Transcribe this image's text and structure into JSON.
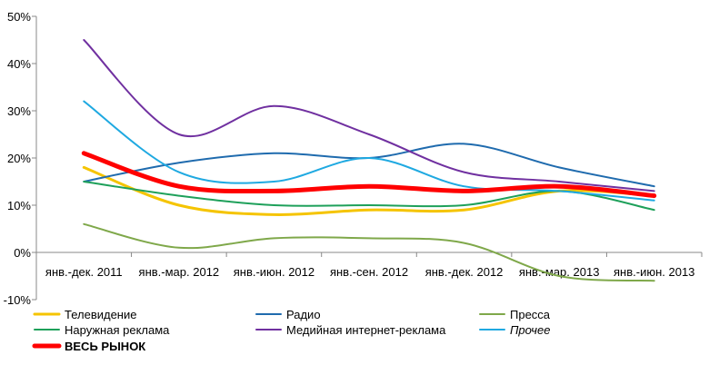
{
  "chart_data": {
    "type": "line",
    "title": "",
    "xlabel": "",
    "ylabel": "",
    "categories": [
      "янв.-дек. 2011",
      "янв.-мар. 2012",
      "янв.-июн. 2012",
      "янв.-сен. 2012",
      "янв.-дек. 2012",
      "янв.-мар. 2013",
      "янв.-июн. 2013"
    ],
    "y_ticks": [
      "-10%",
      "0%",
      "10%",
      "20%",
      "30%",
      "40%",
      "50%"
    ],
    "y_tick_values": [
      -10,
      0,
      10,
      20,
      30,
      40,
      50
    ],
    "ylim": [
      -10,
      50
    ],
    "y_unit": "%",
    "grid": false,
    "smooth": true,
    "legend_position": "bottom",
    "series": [
      {
        "name": "Телевидение",
        "color": "#F5C400",
        "width": 3,
        "values": [
          18,
          10,
          8,
          9,
          9,
          13,
          12
        ]
      },
      {
        "name": "Радио",
        "color": "#1F6BAE",
        "width": 2,
        "values": [
          15,
          19,
          21,
          20,
          23,
          18,
          14
        ]
      },
      {
        "name": "Пресса",
        "color": "#7FA84A",
        "width": 2,
        "values": [
          6,
          1,
          3,
          3,
          2,
          -5,
          -6
        ]
      },
      {
        "name": "Наружная реклама",
        "color": "#1EA05A",
        "width": 2,
        "values": [
          15,
          12,
          10,
          10,
          10,
          13,
          9
        ]
      },
      {
        "name": "Медийная интернет-реклама",
        "color": "#7030A0",
        "width": 2,
        "values": [
          45,
          25,
          31,
          25,
          17,
          15,
          13
        ]
      },
      {
        "name": "Прочее",
        "color": "#1FA9E1",
        "width": 2,
        "italic": true,
        "values": [
          32,
          17,
          15,
          20,
          14,
          13,
          11
        ]
      },
      {
        "name": "ВЕСЬ РЫНОК",
        "color": "#FF0000",
        "width": 5,
        "bold": true,
        "values": [
          21,
          14,
          13,
          14,
          13,
          14,
          12
        ]
      }
    ]
  }
}
